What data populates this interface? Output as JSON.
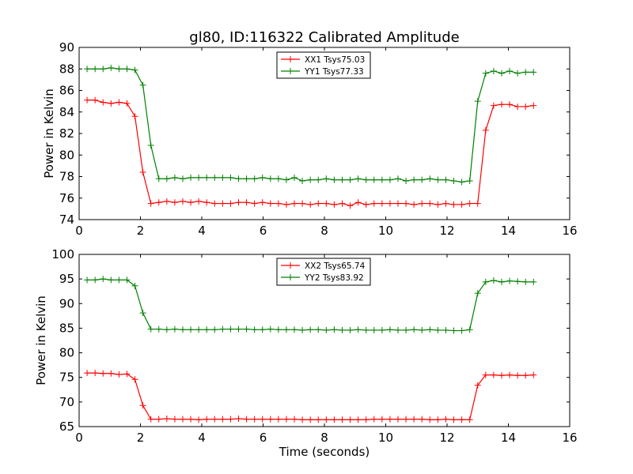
{
  "chart_data": [
    {
      "type": "line",
      "title": "gl80, ID:116322 Calibrated Amplitude",
      "xlabel": "",
      "ylabel": "Power in Kelvin",
      "xlim": [
        0,
        16
      ],
      "ylim": [
        74,
        90
      ],
      "xticks": [
        "0",
        "2",
        "4",
        "6",
        "8",
        "10",
        "12",
        "14",
        "16"
      ],
      "yticks": [
        "74",
        "76",
        "78",
        "80",
        "82",
        "84",
        "86",
        "88",
        "90"
      ],
      "legend_position": "top-center",
      "grid": false,
      "x": [
        0.26,
        0.52,
        0.78,
        1.04,
        1.3,
        1.56,
        1.82,
        2.08,
        2.34,
        2.6,
        2.86,
        3.12,
        3.38,
        3.64,
        3.9,
        4.16,
        4.42,
        4.68,
        4.94,
        5.2,
        5.46,
        5.72,
        5.98,
        6.24,
        6.5,
        6.76,
        7.02,
        7.28,
        7.54,
        7.8,
        8.06,
        8.32,
        8.58,
        8.84,
        9.1,
        9.36,
        9.62,
        9.88,
        10.14,
        10.4,
        10.66,
        10.92,
        11.18,
        11.44,
        11.7,
        11.96,
        12.22,
        12.48,
        12.74,
        13.0,
        13.26,
        13.52,
        13.78,
        14.04,
        14.3,
        14.56,
        14.82
      ],
      "series": [
        {
          "name": "XX1 Tsys75.03",
          "color": "#ff0000",
          "values": [
            85.1,
            85.1,
            84.9,
            84.8,
            84.9,
            84.8,
            83.6,
            78.4,
            75.5,
            75.6,
            75.7,
            75.6,
            75.7,
            75.6,
            75.7,
            75.6,
            75.5,
            75.5,
            75.5,
            75.6,
            75.6,
            75.5,
            75.6,
            75.5,
            75.5,
            75.4,
            75.5,
            75.5,
            75.4,
            75.5,
            75.5,
            75.4,
            75.5,
            75.3,
            75.6,
            75.4,
            75.5,
            75.5,
            75.5,
            75.5,
            75.5,
            75.4,
            75.5,
            75.5,
            75.4,
            75.5,
            75.4,
            75.4,
            75.5,
            75.5,
            82.3,
            84.6,
            84.7,
            84.7,
            84.5,
            84.5,
            84.6
          ]
        },
        {
          "name": "YY1 Tsys77.33",
          "color": "#008000",
          "values": [
            88.0,
            88.0,
            88.0,
            88.1,
            88.0,
            88.0,
            87.9,
            86.5,
            80.9,
            77.8,
            77.8,
            77.9,
            77.8,
            77.9,
            77.9,
            77.9,
            77.9,
            77.9,
            77.9,
            77.8,
            77.8,
            77.8,
            77.9,
            77.8,
            77.8,
            77.7,
            77.9,
            77.6,
            77.7,
            77.7,
            77.8,
            77.7,
            77.7,
            77.7,
            77.8,
            77.7,
            77.7,
            77.7,
            77.7,
            77.8,
            77.6,
            77.7,
            77.7,
            77.8,
            77.7,
            77.7,
            77.6,
            77.5,
            77.6,
            85.0,
            87.6,
            87.8,
            87.6,
            87.8,
            87.6,
            87.7,
            87.7
          ]
        }
      ]
    },
    {
      "type": "line",
      "title": "",
      "xlabel": "Time (seconds)",
      "ylabel": "Power in Kelvin",
      "xlim": [
        0,
        16
      ],
      "ylim": [
        65,
        100
      ],
      "xticks": [
        "0",
        "2",
        "4",
        "6",
        "8",
        "10",
        "12",
        "14",
        "16"
      ],
      "yticks": [
        "65",
        "70",
        "75",
        "80",
        "85",
        "90",
        "95",
        "100"
      ],
      "legend_position": "top-center",
      "grid": false,
      "x": [
        0.26,
        0.52,
        0.78,
        1.04,
        1.3,
        1.56,
        1.82,
        2.08,
        2.34,
        2.6,
        2.86,
        3.12,
        3.38,
        3.64,
        3.9,
        4.16,
        4.42,
        4.68,
        4.94,
        5.2,
        5.46,
        5.72,
        5.98,
        6.24,
        6.5,
        6.76,
        7.02,
        7.28,
        7.54,
        7.8,
        8.06,
        8.32,
        8.58,
        8.84,
        9.1,
        9.36,
        9.62,
        9.88,
        10.14,
        10.4,
        10.66,
        10.92,
        11.18,
        11.44,
        11.7,
        11.96,
        12.22,
        12.48,
        12.74,
        13.0,
        13.26,
        13.52,
        13.78,
        14.04,
        14.3,
        14.56,
        14.82
      ],
      "series": [
        {
          "name": "XX2 Tsys65.74",
          "color": "#ff0000",
          "values": [
            75.9,
            75.9,
            75.8,
            75.8,
            75.6,
            75.7,
            74.6,
            69.3,
            66.5,
            66.5,
            66.6,
            66.5,
            66.5,
            66.5,
            66.4,
            66.5,
            66.5,
            66.5,
            66.5,
            66.6,
            66.5,
            66.5,
            66.5,
            66.5,
            66.5,
            66.5,
            66.5,
            66.4,
            66.4,
            66.4,
            66.4,
            66.4,
            66.4,
            66.4,
            66.4,
            66.4,
            66.5,
            66.5,
            66.5,
            66.5,
            66.5,
            66.5,
            66.5,
            66.4,
            66.4,
            66.5,
            66.4,
            66.4,
            66.4,
            73.4,
            75.5,
            75.5,
            75.4,
            75.5,
            75.4,
            75.4,
            75.5
          ]
        },
        {
          "name": "YY2 Tsys83.92",
          "color": "#008000",
          "values": [
            94.8,
            94.8,
            95.0,
            94.8,
            94.8,
            94.8,
            93.6,
            88.1,
            84.8,
            84.8,
            84.7,
            84.8,
            84.7,
            84.7,
            84.7,
            84.7,
            84.7,
            84.8,
            84.8,
            84.8,
            84.8,
            84.7,
            84.7,
            84.8,
            84.7,
            84.7,
            84.7,
            84.6,
            84.7,
            84.7,
            84.6,
            84.7,
            84.6,
            84.6,
            84.7,
            84.6,
            84.6,
            84.6,
            84.7,
            84.6,
            84.6,
            84.7,
            84.6,
            84.7,
            84.6,
            84.6,
            84.5,
            84.5,
            84.7,
            92.1,
            94.4,
            94.7,
            94.4,
            94.6,
            94.5,
            94.4,
            94.4
          ]
        }
      ]
    }
  ]
}
